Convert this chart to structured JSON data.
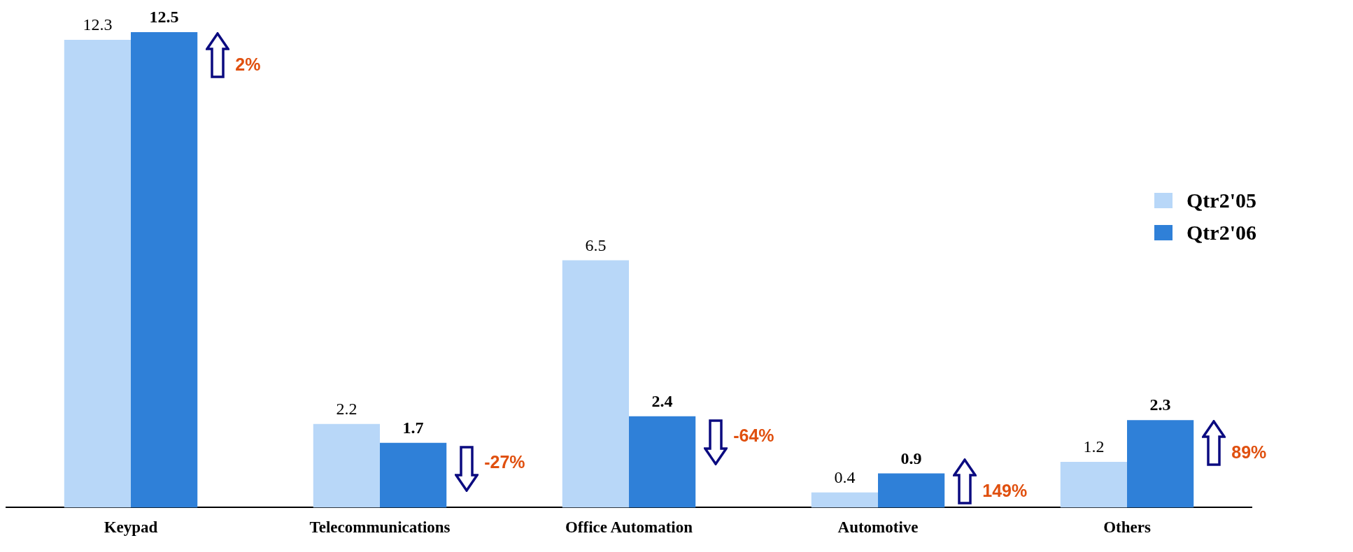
{
  "chart_data": {
    "type": "bar",
    "categories": [
      "Keypad",
      "Telecommunications",
      "Office Automation",
      "Automotive",
      "Others"
    ],
    "series": [
      {
        "name": "Qtr2'05",
        "color": "#b8d7f8",
        "values": [
          12.3,
          2.2,
          6.5,
          0.4,
          1.2
        ]
      },
      {
        "name": "Qtr2'06",
        "color": "#2f80d8",
        "values": [
          12.5,
          1.7,
          2.4,
          0.9,
          2.3
        ]
      }
    ],
    "data_labels": true,
    "legend": "right",
    "grid": false,
    "annotations": [
      "2%",
      "-27%",
      "-64%",
      "149%",
      "89%"
    ]
  }
}
